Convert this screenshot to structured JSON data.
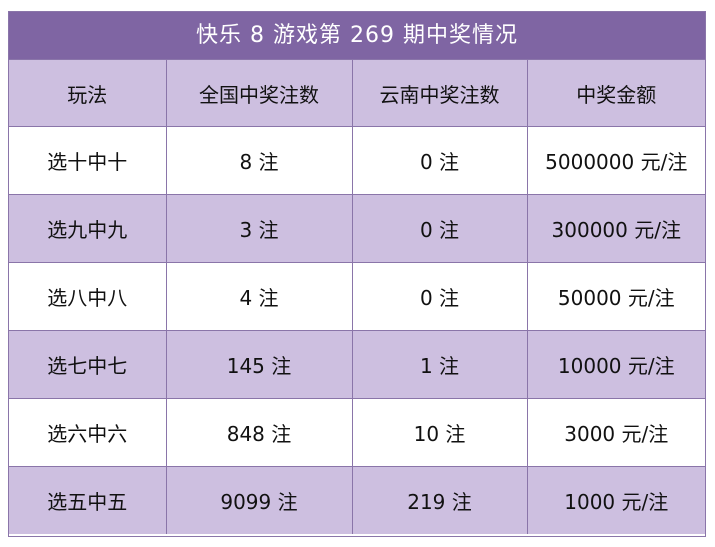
{
  "title": "快乐 8 游戏第 269 期中奖情况",
  "headers": [
    "玩法",
    "全国中奖注数",
    "云南中奖注数",
    "中奖金额"
  ],
  "rows": [
    [
      "选十中十",
      "8 注",
      "0 注",
      "5000000 元/注"
    ],
    [
      "选九中九",
      "3 注",
      "0 注",
      "300000 元/注"
    ],
    [
      "选八中八",
      "4 注",
      "0 注",
      "50000 元/注"
    ],
    [
      "选七中七",
      "145 注",
      "1 注",
      "10000 元/注"
    ],
    [
      "选六中六",
      "848 注",
      "10 注",
      "3000 元/注"
    ],
    [
      "选五中五",
      "9099 注",
      "219 注",
      "1000 元/注"
    ]
  ],
  "colors": {
    "header_bg": "#7f65a3",
    "alt_row_bg": "#cdbfe0",
    "border": "#8a75a9"
  }
}
